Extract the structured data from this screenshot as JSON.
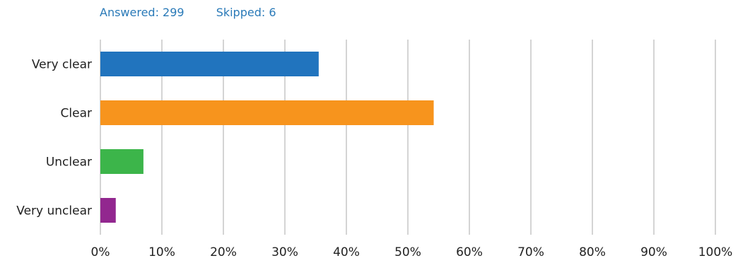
{
  "header": {
    "answered": "Answered: 299",
    "skipped": "Skipped: 6"
  },
  "chart_data": {
    "type": "bar",
    "orientation": "horizontal",
    "categories": [
      "Very clear",
      "Clear",
      "Unclear",
      "Very unclear"
    ],
    "values": [
      35.5,
      54.2,
      7.0,
      2.5
    ],
    "colors": [
      "#2174be",
      "#f7941d",
      "#3cb54a",
      "#92278f"
    ],
    "xlim": [
      0,
      100
    ],
    "xticks": [
      "0%",
      "10%",
      "20%",
      "30%",
      "40%",
      "50%",
      "60%",
      "70%",
      "80%",
      "90%",
      "100%"
    ],
    "grid": "vertical",
    "title": "",
    "xlabel": "",
    "ylabel": ""
  }
}
